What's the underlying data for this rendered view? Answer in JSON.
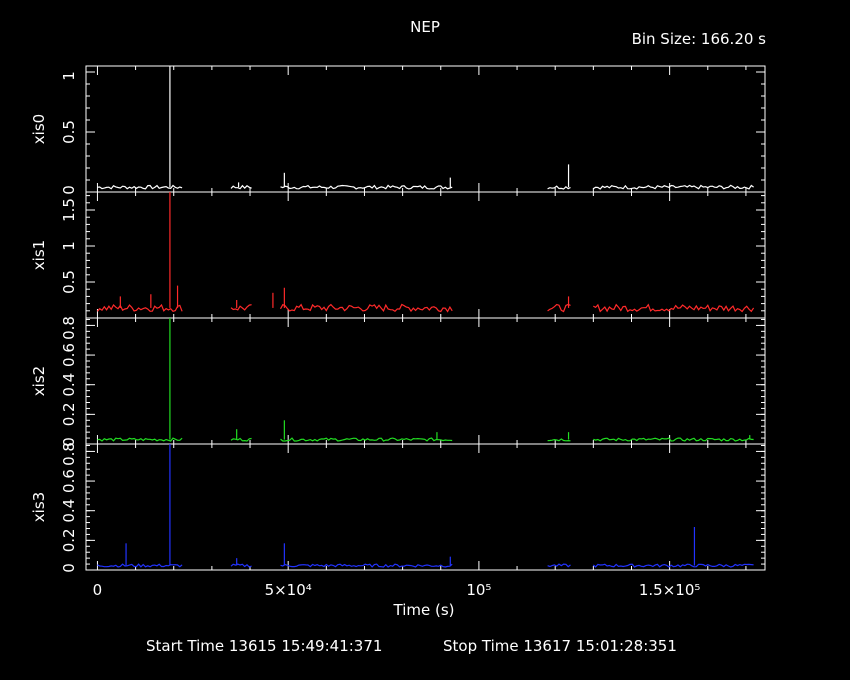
{
  "title": "NEP",
  "bin_size": "Bin Size: 166.20 s",
  "xlabel": "Time (s)",
  "footer": {
    "start": "Start Time 13615 15:49:41:371",
    "stop": "Stop Time 13617 15:01:28:351"
  },
  "colors": {
    "xis0": "#ffffff",
    "xis1": "#ff2a2a",
    "xis2": "#22dd22",
    "xis3": "#2233ff"
  },
  "chart_data": {
    "type": "line",
    "title": "NEP",
    "xlabel": "Time (s)",
    "xlim": [
      -3000,
      175000
    ],
    "x_ticks": [
      0,
      50000,
      100000,
      150000
    ],
    "x_tick_labels": [
      "0",
      "5×10⁴",
      "10⁵",
      "1.5×10⁵"
    ],
    "segments": [
      [
        0,
        22500
      ],
      [
        35000,
        40500
      ],
      [
        48000,
        93000
      ],
      [
        118000,
        124000
      ],
      [
        130000,
        172000
      ]
    ],
    "panels": [
      {
        "ylabel": "xis0",
        "ylim": [
          0,
          1.05
        ],
        "ticks": [
          0,
          0.5,
          1
        ],
        "tick_labels": [
          "0",
          "0.5",
          "1"
        ],
        "base": 0.04,
        "noise": 0.015,
        "spikes": [
          [
            19000,
            1.05
          ],
          [
            37000,
            0.08
          ],
          [
            49000,
            0.16
          ],
          [
            92500,
            0.12
          ],
          [
            123500,
            0.23
          ]
        ]
      },
      {
        "ylabel": "xis1",
        "ylim": [
          0,
          1.75
        ],
        "ticks": [
          0.5,
          1,
          1.5
        ],
        "tick_labels": [
          "0.5",
          "1",
          "1.5"
        ],
        "base": 0.14,
        "noise": 0.05,
        "spikes": [
          [
            6000,
            0.3
          ],
          [
            14000,
            0.33
          ],
          [
            19000,
            1.75
          ],
          [
            21000,
            0.45
          ],
          [
            36500,
            0.25
          ],
          [
            46000,
            0.35
          ],
          [
            49000,
            0.42
          ],
          [
            123500,
            0.3
          ]
        ]
      },
      {
        "ylabel": "xis2",
        "ylim": [
          0,
          0.85
        ],
        "ticks": [
          0,
          0.2,
          0.4,
          0.6,
          0.8
        ],
        "tick_labels": [
          "0",
          "0.2",
          "0.4",
          "0.6",
          "0.8"
        ],
        "base": 0.03,
        "noise": 0.01,
        "spikes": [
          [
            19000,
            0.85
          ],
          [
            36500,
            0.1
          ],
          [
            49000,
            0.16
          ],
          [
            89000,
            0.08
          ],
          [
            123500,
            0.08
          ],
          [
            171000,
            0.06
          ]
        ]
      },
      {
        "ylabel": "xis3",
        "ylim": [
          0,
          0.85
        ],
        "ticks": [
          0,
          0.2,
          0.4,
          0.6,
          0.8
        ],
        "tick_labels": [
          "0",
          "0.2",
          "0.4",
          "0.6",
          "0.8"
        ],
        "base": 0.03,
        "noise": 0.01,
        "spikes": [
          [
            7500,
            0.18
          ],
          [
            19000,
            0.85
          ],
          [
            36500,
            0.08
          ],
          [
            49000,
            0.18
          ],
          [
            92500,
            0.09
          ],
          [
            156500,
            0.29
          ]
        ]
      }
    ]
  }
}
